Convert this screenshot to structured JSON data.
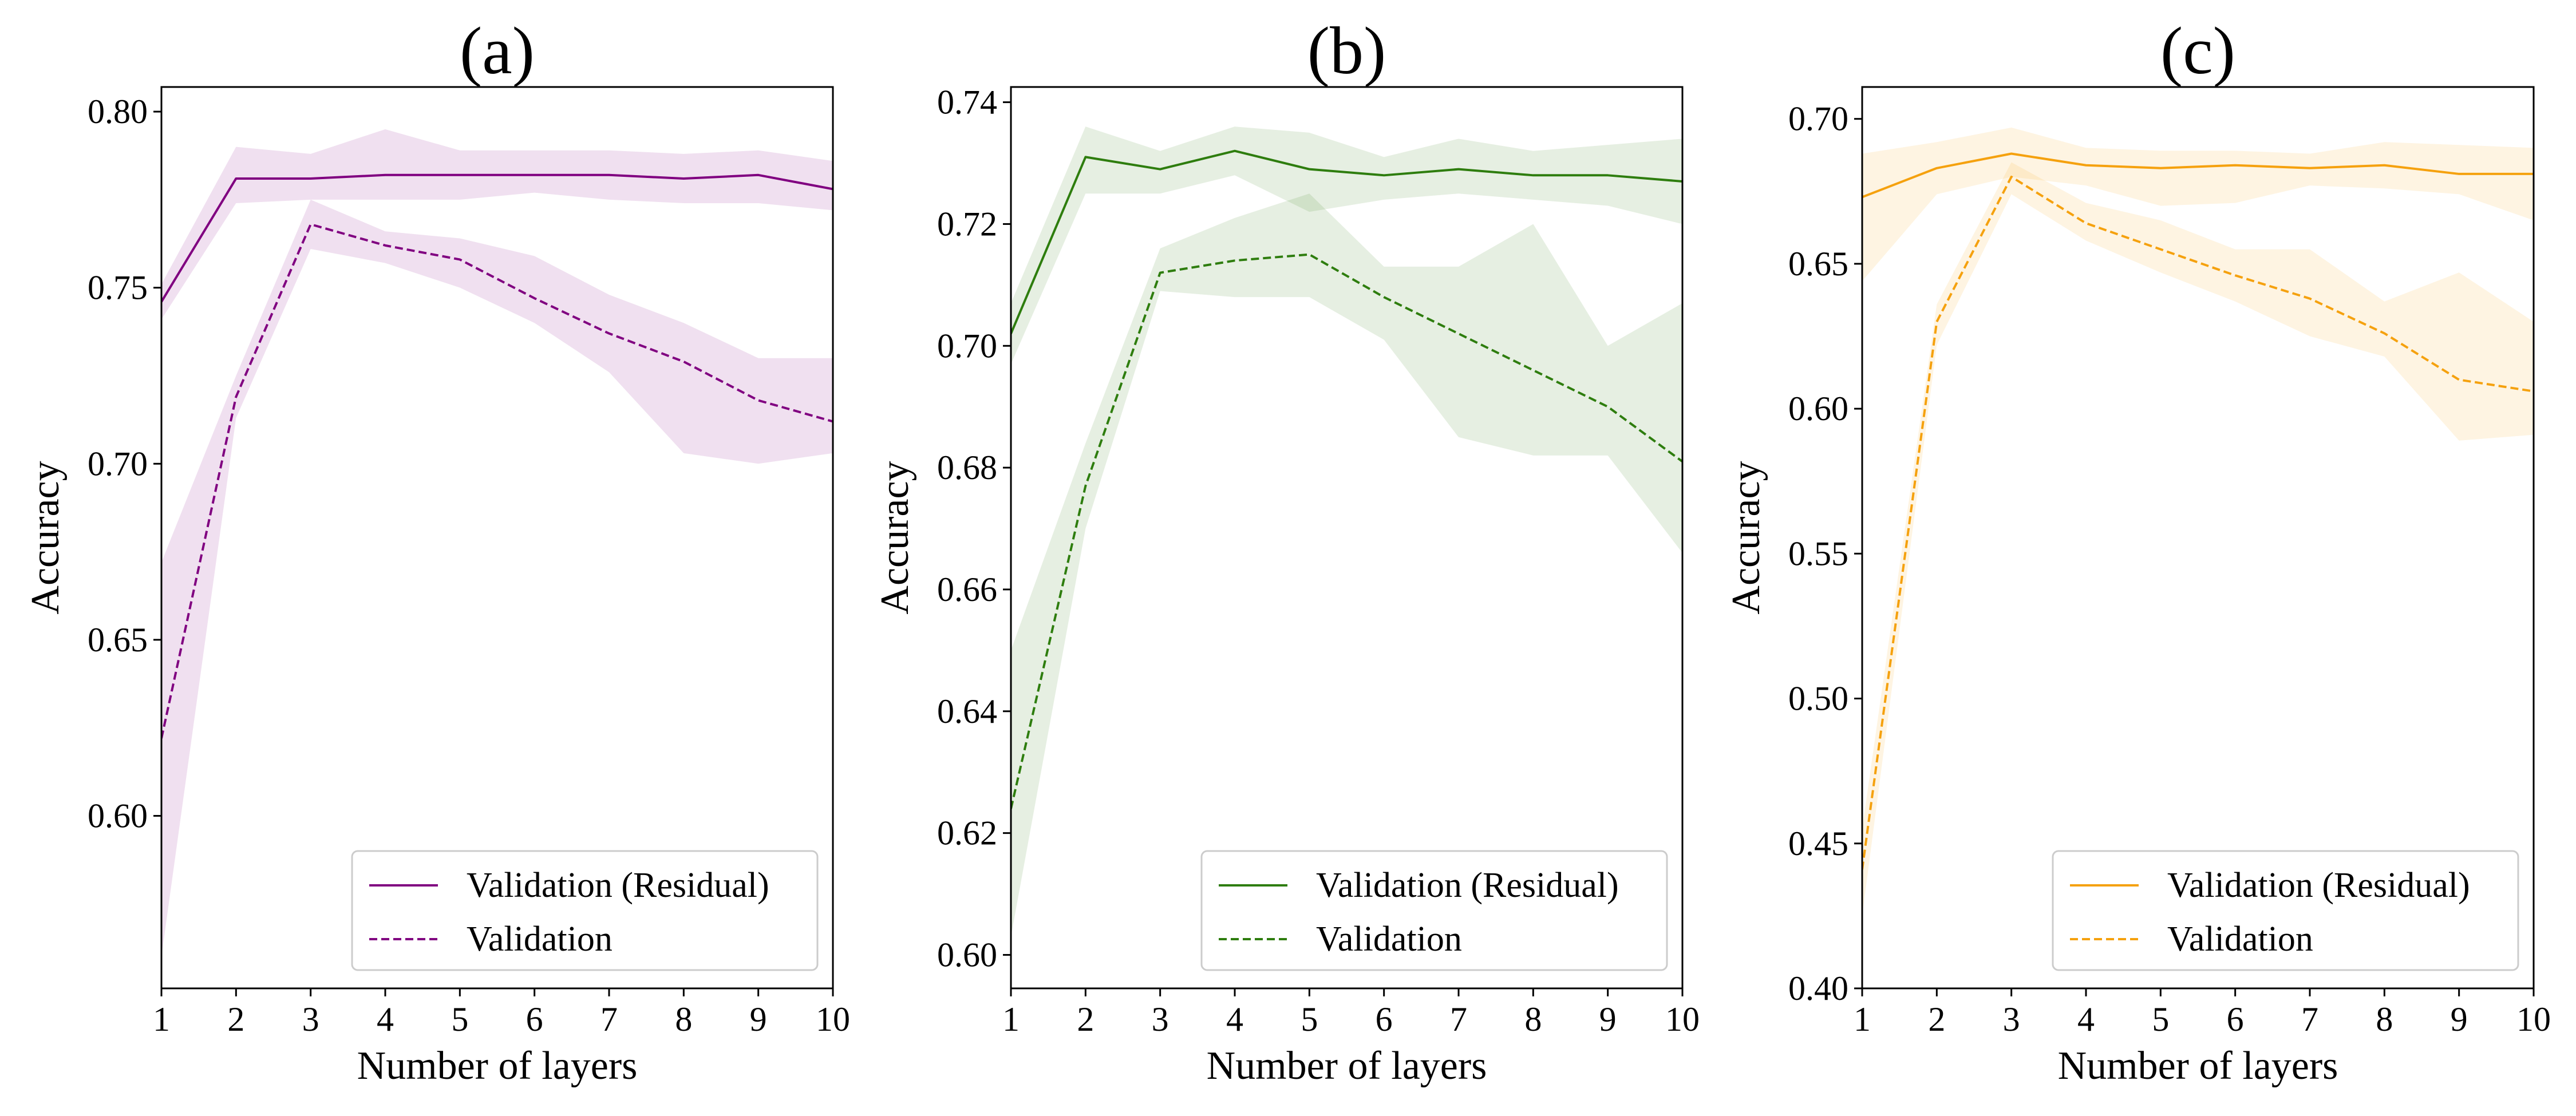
{
  "chart_data": [
    {
      "type": "line",
      "title": "(a)",
      "xlabel": "Number of layers",
      "ylabel": "Accuracy",
      "x": [
        1,
        2,
        3,
        4,
        5,
        6,
        7,
        8,
        9,
        10
      ],
      "xlim": [
        1,
        10
      ],
      "ylim": [
        0.551,
        0.807
      ],
      "yticks": [
        0.6,
        0.65,
        0.7,
        0.75,
        0.8
      ],
      "ytick_labels": [
        "0.60",
        "0.65",
        "0.70",
        "0.75",
        "0.80"
      ],
      "color": "#800080",
      "grid": false,
      "legend_position": "lower-right",
      "series": [
        {
          "name": "Validation (Residual)",
          "style": "solid",
          "values": [
            0.746,
            0.781,
            0.781,
            0.782,
            0.782,
            0.782,
            0.782,
            0.781,
            0.782,
            0.778
          ],
          "band_upper": [
            0.751,
            0.79,
            0.788,
            0.795,
            0.789,
            0.789,
            0.789,
            0.788,
            0.789,
            0.786
          ],
          "band_lower": [
            0.741,
            0.774,
            0.775,
            0.775,
            0.775,
            0.777,
            0.775,
            0.774,
            0.774,
            0.772
          ]
        },
        {
          "name": "Validation",
          "style": "dashed",
          "values": [
            0.622,
            0.719,
            0.768,
            0.762,
            0.758,
            0.747,
            0.737,
            0.729,
            0.718,
            0.712
          ],
          "band_upper": [
            0.672,
            0.725,
            0.775,
            0.766,
            0.764,
            0.759,
            0.748,
            0.74,
            0.73,
            0.73
          ],
          "band_lower": [
            0.56,
            0.713,
            0.761,
            0.757,
            0.75,
            0.74,
            0.726,
            0.703,
            0.7,
            0.703
          ]
        }
      ]
    },
    {
      "type": "line",
      "title": "(b)",
      "xlabel": "Number of layers",
      "ylabel": "Accuracy",
      "x": [
        1,
        2,
        3,
        4,
        5,
        6,
        7,
        8,
        9,
        10
      ],
      "xlim": [
        1,
        10
      ],
      "ylim": [
        0.5945,
        0.7425
      ],
      "yticks": [
        0.6,
        0.62,
        0.64,
        0.66,
        0.68,
        0.7,
        0.72,
        0.74
      ],
      "ytick_labels": [
        "0.60",
        "0.62",
        "0.64",
        "0.66",
        "0.68",
        "0.70",
        "0.72",
        "0.74"
      ],
      "color": "#2e7d0e",
      "grid": false,
      "legend_position": "lower-right",
      "series": [
        {
          "name": "Validation (Residual)",
          "style": "solid",
          "values": [
            0.702,
            0.731,
            0.729,
            0.732,
            0.729,
            0.728,
            0.729,
            0.728,
            0.728,
            0.727
          ],
          "band_upper": [
            0.707,
            0.736,
            0.732,
            0.736,
            0.735,
            0.731,
            0.734,
            0.732,
            0.733,
            0.734
          ],
          "band_lower": [
            0.697,
            0.725,
            0.725,
            0.728,
            0.722,
            0.724,
            0.725,
            0.724,
            0.723,
            0.72
          ]
        },
        {
          "name": "Validation",
          "style": "dashed",
          "values": [
            0.624,
            0.677,
            0.712,
            0.714,
            0.715,
            0.708,
            0.702,
            0.696,
            0.69,
            0.681
          ],
          "band_upper": [
            0.65,
            0.684,
            0.716,
            0.721,
            0.725,
            0.713,
            0.713,
            0.72,
            0.7,
            0.707
          ],
          "band_lower": [
            0.603,
            0.67,
            0.709,
            0.708,
            0.708,
            0.701,
            0.685,
            0.682,
            0.682,
            0.666
          ]
        }
      ]
    },
    {
      "type": "line",
      "title": "(c)",
      "xlabel": "Number of layers",
      "ylabel": "Accuracy",
      "x": [
        1,
        2,
        3,
        4,
        5,
        6,
        7,
        8,
        9,
        10
      ],
      "xlim": [
        1,
        10
      ],
      "ylim": [
        0.4,
        0.711
      ],
      "yticks": [
        0.4,
        0.45,
        0.5,
        0.55,
        0.6,
        0.65,
        0.7
      ],
      "ytick_labels": [
        "0.40",
        "0.45",
        "0.50",
        "0.55",
        "0.60",
        "0.65",
        "0.70"
      ],
      "color": "#f5a10e",
      "grid": false,
      "legend_position": "lower-right",
      "series": [
        {
          "name": "Validation (Residual)",
          "style": "solid",
          "values": [
            0.673,
            0.683,
            0.688,
            0.684,
            0.683,
            0.684,
            0.683,
            0.684,
            0.681,
            0.681
          ],
          "band_upper": [
            0.688,
            0.692,
            0.697,
            0.69,
            0.689,
            0.689,
            0.688,
            0.692,
            0.691,
            0.69
          ],
          "band_lower": [
            0.644,
            0.674,
            0.68,
            0.677,
            0.67,
            0.671,
            0.677,
            0.676,
            0.674,
            0.665
          ]
        },
        {
          "name": "Validation",
          "style": "dashed",
          "values": [
            0.441,
            0.63,
            0.68,
            0.664,
            0.655,
            0.646,
            0.638,
            0.626,
            0.61,
            0.606
          ],
          "band_upper": [
            0.455,
            0.636,
            0.685,
            0.671,
            0.665,
            0.655,
            0.655,
            0.637,
            0.647,
            0.63
          ],
          "band_lower": [
            0.425,
            0.622,
            0.674,
            0.658,
            0.647,
            0.637,
            0.625,
            0.618,
            0.589,
            0.591
          ]
        }
      ]
    }
  ]
}
